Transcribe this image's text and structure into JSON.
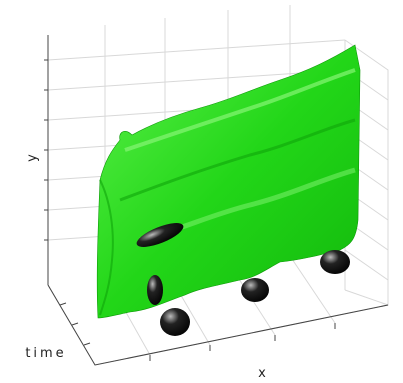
{
  "axes": {
    "y_label": "y",
    "z_label": "time",
    "x_label": "x"
  }
}
